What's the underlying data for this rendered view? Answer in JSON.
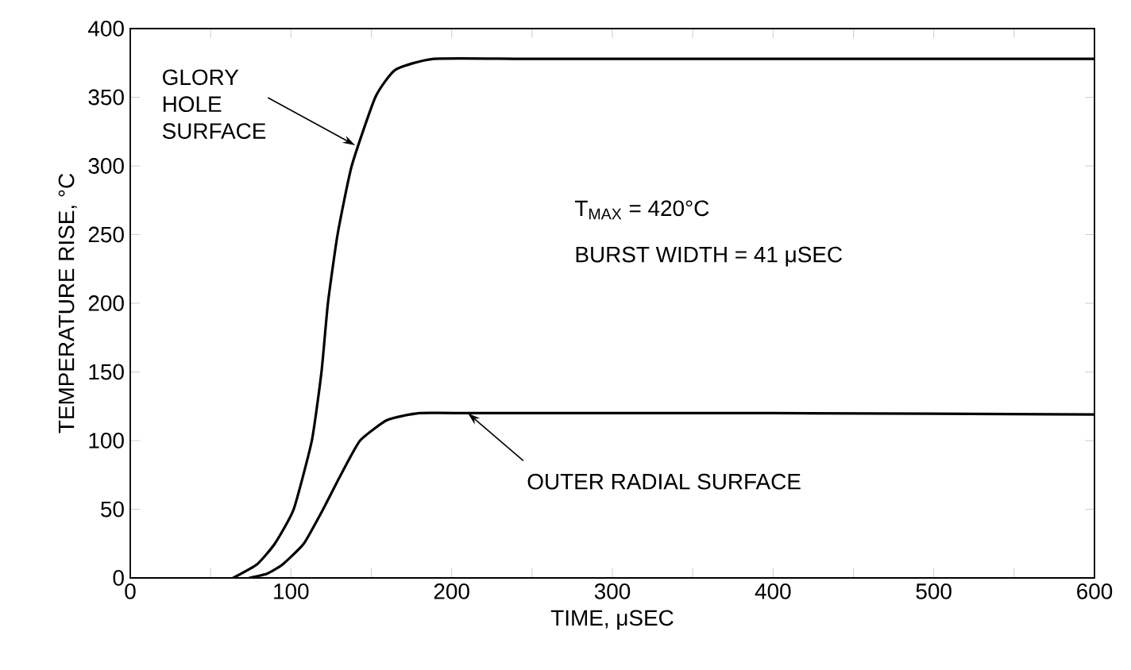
{
  "chart_data": {
    "type": "line",
    "xlabel": "TIME, μSEC",
    "ylabel": "TEMPERATURE RISE, °C",
    "xlim": [
      0,
      600
    ],
    "ylim": [
      0,
      400
    ],
    "xticks": [
      0,
      100,
      200,
      300,
      400,
      500,
      600
    ],
    "yticks": [
      0,
      50,
      100,
      150,
      200,
      250,
      300,
      350,
      400
    ],
    "grid": false,
    "marker": "none",
    "line_style": "solid",
    "series": [
      {
        "color": "#000000",
        "x": [
          64,
          79,
          90,
          101.7,
          113,
          119,
          123,
          129,
          137.8,
          152.5,
          165,
          189,
          250,
          400,
          600
        ],
        "values": [
          0,
          10,
          25,
          50,
          100,
          150,
          200,
          250,
          300,
          350,
          370,
          378,
          378,
          378,
          378
        ]
      },
      {
        "color": "#000000",
        "x": [
          74,
          85,
          95,
          108,
          120,
          131,
          143,
          160,
          180,
          210,
          400,
          600
        ],
        "values": [
          0,
          3,
          10,
          25,
          50,
          75,
          100,
          115,
          120,
          120,
          120,
          119
        ]
      }
    ],
    "annotations": [
      {
        "text": "GLORY HOLE SURFACE",
        "x": 140,
        "y": 315
      },
      {
        "text": "OUTER RADIAL SURFACE",
        "x": 210,
        "y": 120
      },
      "T$_{MAX}$ = 420°C",
      "BURST WIDTH = 41 μSEC"
    ]
  }
}
